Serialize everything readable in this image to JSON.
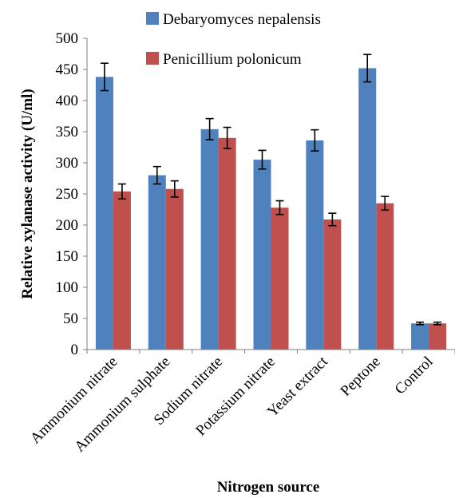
{
  "chart_data": {
    "type": "bar",
    "title": "",
    "xlabel": "Nitrogen source",
    "ylabel": "Relative xylanase activity (U/ml)",
    "ylim": [
      0,
      500
    ],
    "yticks": [
      0,
      50,
      100,
      150,
      200,
      250,
      300,
      350,
      400,
      450,
      500
    ],
    "grid": false,
    "legend_position": "top",
    "categories": [
      "Ammonium nitrate",
      "Ammonium sulphate",
      "Sodium nitrate",
      "Potassium nitrate",
      "Yeast extract",
      "Peptone",
      "Control"
    ],
    "series": [
      {
        "name": "Debaryomyces nepalensis",
        "color": "#4f81bd",
        "values": [
          438,
          280,
          354,
          305,
          336,
          452,
          42
        ],
        "errors": [
          22,
          14,
          17,
          15,
          17,
          22,
          2
        ]
      },
      {
        "name": "Penicillium polonicum",
        "color": "#c0504d",
        "values": [
          254,
          258,
          340,
          228,
          209,
          235,
          42
        ],
        "errors": [
          12,
          13,
          17,
          11,
          10,
          11,
          2
        ]
      }
    ]
  }
}
